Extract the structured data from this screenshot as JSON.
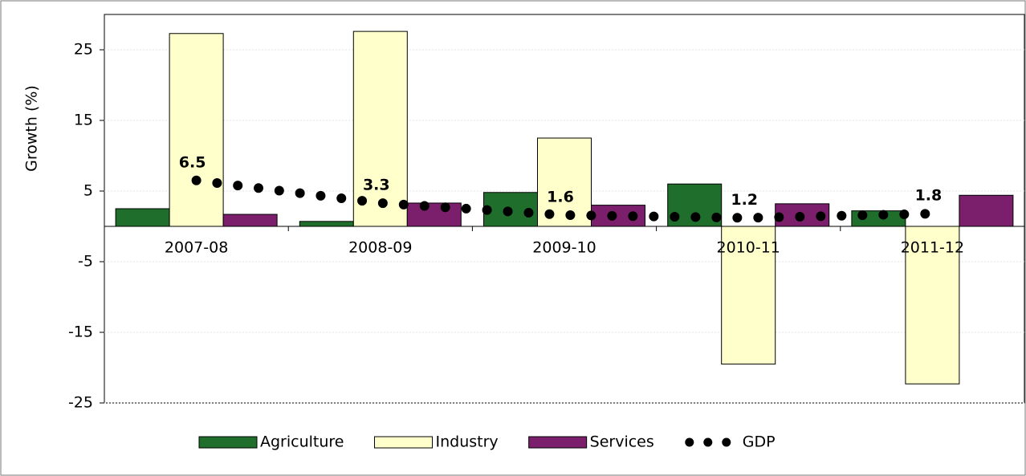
{
  "chart_data": {
    "type": "bar",
    "y_label": "Growth (%)",
    "categories": [
      "2007-08",
      "2008-09",
      "2009-10",
      "2010-11",
      "2011-12"
    ],
    "series": [
      {
        "name": "Agriculture",
        "color": "#1f6e2c",
        "values": [
          2.5,
          0.7,
          4.8,
          6.0,
          2.2
        ]
      },
      {
        "name": "Industry",
        "color": "#ffffcc",
        "values": [
          27.3,
          27.6,
          12.5,
          -19.5,
          -22.3
        ]
      },
      {
        "name": "Services",
        "color": "#7b1f6c",
        "values": [
          1.7,
          3.3,
          3.0,
          3.2,
          4.4
        ]
      },
      {
        "name": "GDP",
        "type": "line",
        "color": "#000000",
        "values": [
          6.5,
          3.3,
          1.6,
          1.2,
          1.8
        ]
      }
    ],
    "ylim": [
      -25,
      30
    ],
    "yticks": [
      -25,
      -15,
      -5,
      5,
      15,
      25
    ],
    "grid": true,
    "legend": "bottom"
  }
}
